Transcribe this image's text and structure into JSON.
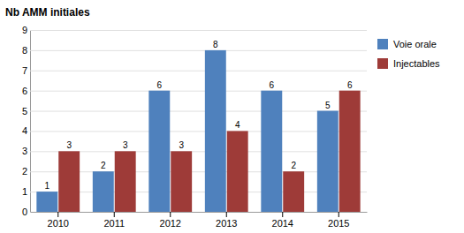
{
  "chart_data": {
    "type": "bar",
    "ylabel": "Nb AMM initiales",
    "categories": [
      "2010",
      "2011",
      "2012",
      "2013",
      "2014",
      "2015"
    ],
    "series": [
      {
        "name": "Voie orale",
        "color": "#4F81BD",
        "values": [
          1,
          2,
          6,
          8,
          6,
          5
        ]
      },
      {
        "name": "Injectables",
        "color": "#9E3B38",
        "values": [
          3,
          3,
          3,
          4,
          2,
          6
        ]
      }
    ],
    "ylim": [
      0,
      9
    ],
    "yticks": [
      0,
      1,
      2,
      3,
      4,
      5,
      6,
      7,
      8,
      9
    ],
    "grid": true,
    "legend": "right",
    "data_labels": true
  }
}
